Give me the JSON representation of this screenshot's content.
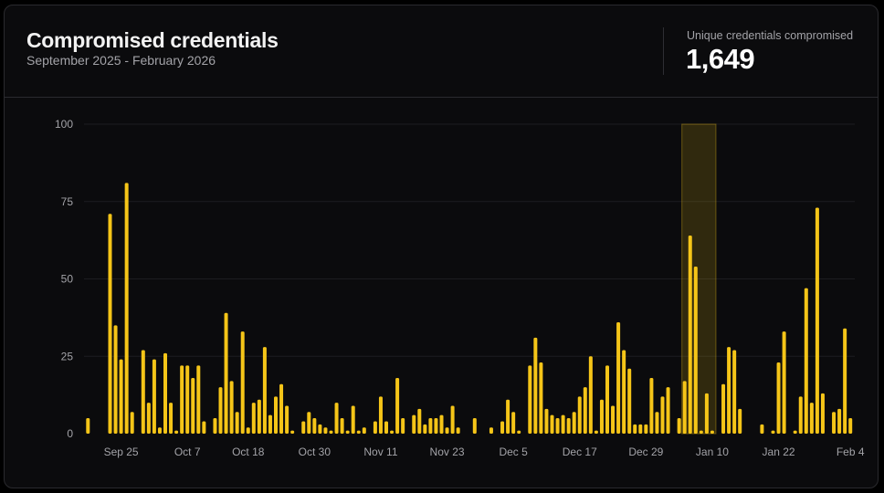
{
  "header": {
    "title": "Compromised credentials",
    "subtitle": "September 2025 - February 2026",
    "stat_label": "Unique credentials compromised",
    "stat_value": "1,649"
  },
  "colors": {
    "bar": "#f5c518",
    "highlight_fill": "rgba(245,197,24,0.16)",
    "highlight_stroke": "rgba(245,197,24,0.35)",
    "grid": "#1d1d21",
    "tick_text": "#a3a3a8"
  },
  "chart_data": {
    "type": "bar",
    "title": "Compromised credentials",
    "subtitle": "September 2025 - February 2026",
    "xlabel": "",
    "ylabel": "",
    "ylim": [
      0,
      100
    ],
    "yticks": [
      0,
      25,
      50,
      75,
      100
    ],
    "grid": true,
    "start_date": "Sep 19",
    "x_tick_labels": [
      {
        "label": "Sep 25",
        "index": 6
      },
      {
        "label": "Oct 7",
        "index": 18
      },
      {
        "label": "Oct 18",
        "index": 29
      },
      {
        "label": "Oct 30",
        "index": 41
      },
      {
        "label": "Nov 11",
        "index": 53
      },
      {
        "label": "Nov 23",
        "index": 65
      },
      {
        "label": "Dec 5",
        "index": 77
      },
      {
        "label": "Dec 17",
        "index": 89
      },
      {
        "label": "Dec 29",
        "index": 101
      },
      {
        "label": "Jan 10",
        "index": 113
      },
      {
        "label": "Jan 22",
        "index": 125
      },
      {
        "label": "Feb 4",
        "index": 138
      }
    ],
    "highlight_range": {
      "start_index": 108,
      "end_index": 113
    },
    "values": [
      5,
      0,
      0,
      0,
      71,
      35,
      24,
      81,
      7,
      0,
      27,
      10,
      24,
      2,
      26,
      10,
      1,
      22,
      22,
      18,
      22,
      4,
      0,
      5,
      15,
      39,
      17,
      7,
      33,
      2,
      10,
      11,
      28,
      6,
      12,
      16,
      9,
      1,
      0,
      4,
      7,
      5,
      3,
      2,
      1,
      10,
      5,
      1,
      9,
      1,
      2,
      0,
      4,
      12,
      4,
      1,
      18,
      5,
      0,
      6,
      8,
      3,
      5,
      5,
      6,
      2,
      9,
      2,
      0,
      0,
      5,
      0,
      0,
      2,
      0,
      4,
      11,
      7,
      1,
      0,
      22,
      31,
      23,
      8,
      6,
      5,
      6,
      5,
      7,
      12,
      15,
      25,
      1,
      11,
      22,
      9,
      36,
      27,
      21,
      3,
      3,
      3,
      18,
      7,
      12,
      15,
      0,
      5,
      17,
      64,
      54,
      1,
      13,
      1,
      0,
      16,
      28,
      27,
      8,
      0,
      0,
      0,
      3,
      0,
      1,
      23,
      33,
      0,
      1,
      12,
      47,
      10,
      73,
      13,
      0,
      7,
      8,
      34,
      5
    ]
  }
}
